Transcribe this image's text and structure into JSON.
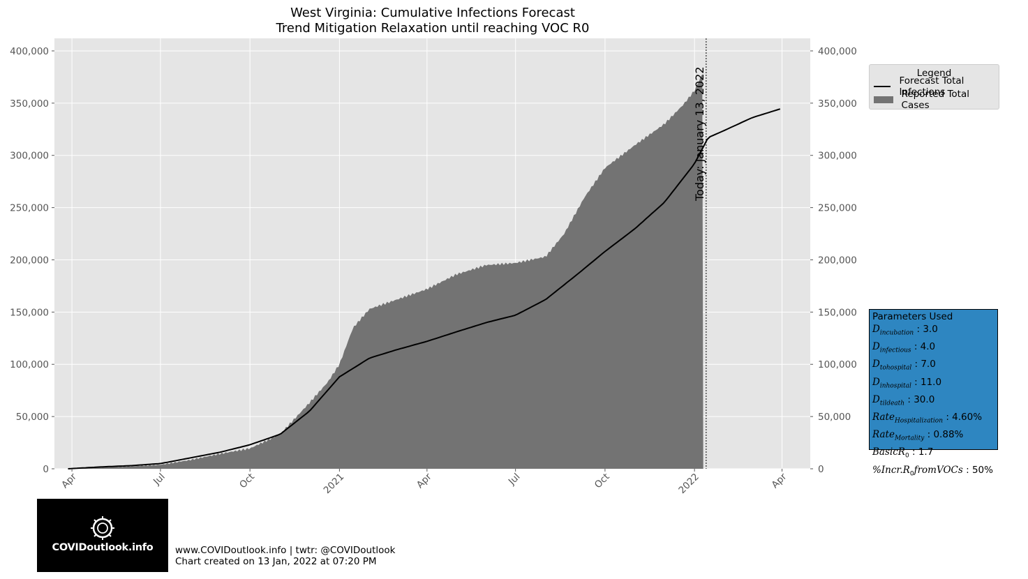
{
  "title_line1": "West Virginia: Cumulative Infections Forecast",
  "title_line2": "Trend Mitigation Relaxation until reaching VOC R0",
  "today_label": "Today: January 13, 2022",
  "legend": {
    "title": "Legend",
    "items": [
      {
        "label": "Forecast Total Infections",
        "color": "#000000"
      },
      {
        "label": "Reported Total Cases",
        "color": "#737373"
      }
    ]
  },
  "params": {
    "title": "Parameters Used",
    "d_incubation": "3.0",
    "d_infectious": "4.0",
    "d_tohospital": "7.0",
    "d_inhospital": "11.0",
    "d_tildeath": "30.0",
    "rate_hospitalization": "4.60%",
    "rate_mortality": "0.88%",
    "basic_r0": "1.7",
    "incr_r0_vocs": "50%"
  },
  "logo_text": "COVIDoutlook.info",
  "credits_line1": "www.COVIDoutlook.info | twtr: @COVIDoutlook",
  "credits_line2": "Chart created on 13 Jan, 2022 at 07:20 PM",
  "chart_data": {
    "type": "area",
    "x_axis": {
      "type": "date",
      "range": [
        "2020-03-14",
        "2022-04-30"
      ],
      "ticks": [
        {
          "date": "2020-04-01",
          "label": "Apr"
        },
        {
          "date": "2020-07-01",
          "label": "Jul"
        },
        {
          "date": "2020-10-01",
          "label": "Oct"
        },
        {
          "date": "2021-01-01",
          "label": "2021"
        },
        {
          "date": "2021-04-01",
          "label": "Apr"
        },
        {
          "date": "2021-07-01",
          "label": "Jul"
        },
        {
          "date": "2021-10-01",
          "label": "Oct"
        },
        {
          "date": "2022-01-01",
          "label": "2022"
        },
        {
          "date": "2022-04-01",
          "label": "Apr"
        }
      ]
    },
    "y_axis": {
      "range": [
        0,
        412000
      ],
      "ticks": [
        0,
        50000,
        100000,
        150000,
        200000,
        250000,
        300000,
        350000,
        400000
      ],
      "tick_labels": [
        "0",
        "50,000",
        "100,000",
        "150,000",
        "200,000",
        "250,000",
        "300,000",
        "350,000",
        "400,000"
      ],
      "right_axis": true
    },
    "grid": true,
    "legend_position": "outside-right-top",
    "today_date": "2022-01-13",
    "series": [
      {
        "name": "Reported Total Cases",
        "kind": "bars",
        "color": "#737373",
        "points": [
          [
            "2020-03-28",
            0
          ],
          [
            "2020-05-01",
            1300
          ],
          [
            "2020-06-01",
            2300
          ],
          [
            "2020-07-01",
            3800
          ],
          [
            "2020-08-01",
            8500
          ],
          [
            "2020-09-01",
            14500
          ],
          [
            "2020-10-01",
            19500
          ],
          [
            "2020-11-01",
            33000
          ],
          [
            "2020-12-01",
            63000
          ],
          [
            "2020-12-20",
            83000
          ],
          [
            "2021-01-01",
            100000
          ],
          [
            "2021-01-15",
            135000
          ],
          [
            "2021-02-01",
            153000
          ],
          [
            "2021-03-01",
            162000
          ],
          [
            "2021-04-01",
            172000
          ],
          [
            "2021-05-01",
            186000
          ],
          [
            "2021-06-01",
            195000
          ],
          [
            "2021-07-01",
            197000
          ],
          [
            "2021-08-01",
            203000
          ],
          [
            "2021-08-20",
            225000
          ],
          [
            "2021-09-10",
            260000
          ],
          [
            "2021-10-01",
            288000
          ],
          [
            "2021-11-01",
            310000
          ],
          [
            "2021-12-01",
            330000
          ],
          [
            "2021-12-20",
            348000
          ],
          [
            "2022-01-01",
            362000
          ],
          [
            "2022-01-10",
            380000
          ]
        ]
      },
      {
        "name": "Forecast Total Infections",
        "kind": "line",
        "color": "#000000",
        "points": [
          [
            "2020-03-28",
            0
          ],
          [
            "2020-05-01",
            1800
          ],
          [
            "2020-06-01",
            3000
          ],
          [
            "2020-07-01",
            5000
          ],
          [
            "2020-08-01",
            10500
          ],
          [
            "2020-09-01",
            16000
          ],
          [
            "2020-10-01",
            23000
          ],
          [
            "2020-11-01",
            33000
          ],
          [
            "2020-12-01",
            55000
          ],
          [
            "2021-01-01",
            88000
          ],
          [
            "2021-02-01",
            106000
          ],
          [
            "2021-03-01",
            114000
          ],
          [
            "2021-04-01",
            122000
          ],
          [
            "2021-05-01",
            131000
          ],
          [
            "2021-06-01",
            140000
          ],
          [
            "2021-07-01",
            147000
          ],
          [
            "2021-08-01",
            162000
          ],
          [
            "2021-09-01",
            185000
          ],
          [
            "2021-10-01",
            208000
          ],
          [
            "2021-11-01",
            230000
          ],
          [
            "2021-12-01",
            255000
          ],
          [
            "2022-01-01",
            292000
          ],
          [
            "2022-01-15",
            317000
          ],
          [
            "2022-02-01",
            324000
          ],
          [
            "2022-03-01",
            336000
          ],
          [
            "2022-04-01",
            345000
          ]
        ]
      }
    ]
  }
}
